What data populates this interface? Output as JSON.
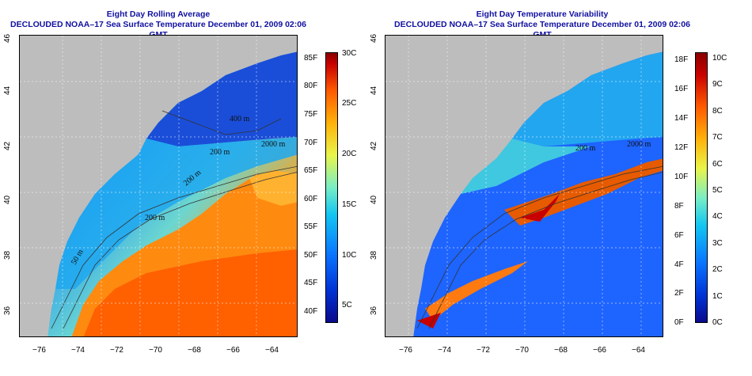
{
  "left_panel": {
    "title_line1": "Eight Day Rolling Average",
    "title_line2": "DECLOUDED NOAA–17 Sea Surface Temperature December 01, 2009 02:06 GMT",
    "lat_ticks": [
      "36",
      "38",
      "40",
      "42",
      "44",
      "46"
    ],
    "lon_ticks": [
      "−76",
      "−74",
      "−72",
      "−70",
      "−68",
      "−66",
      "−64"
    ],
    "depth_labels": [
      "400 m",
      "200 m",
      "200 m",
      "2000 m",
      "200 m",
      "50 m",
      "50 m"
    ],
    "colorbar_f": [
      "40F",
      "45F",
      "50F",
      "55F",
      "60F",
      "65F",
      "70F",
      "75F",
      "80F",
      "85F"
    ],
    "colorbar_c": [
      "5C",
      "10C",
      "15C",
      "20C",
      "25C",
      "30C"
    ]
  },
  "right_panel": {
    "title_line1": "Eight Day Temperature Variability",
    "title_line2": "DECLOUDED NOAA–17 Sea Surface Temperature December 01, 2009 02:06 GMT",
    "lat_ticks": [
      "36",
      "38",
      "40",
      "42",
      "44",
      "46"
    ],
    "lon_ticks": [
      "−76",
      "−74",
      "−72",
      "−70",
      "−68",
      "−66",
      "−64"
    ],
    "depth_labels": [
      "200 m",
      "2000 m"
    ],
    "colorbar_f": [
      "0F",
      "2F",
      "4F",
      "6F",
      "8F",
      "10F",
      "12F",
      "14F",
      "16F",
      "18F"
    ],
    "colorbar_c": [
      "0C",
      "1C",
      "2C",
      "3C",
      "4C",
      "5C",
      "6C",
      "7C",
      "8C",
      "9C",
      "10C"
    ]
  },
  "colors": {
    "title": "#1010a0",
    "land": "#bdbdbd",
    "cold": "#0a3fd6",
    "warm": "#ff6a00",
    "hot": "#c80000"
  }
}
